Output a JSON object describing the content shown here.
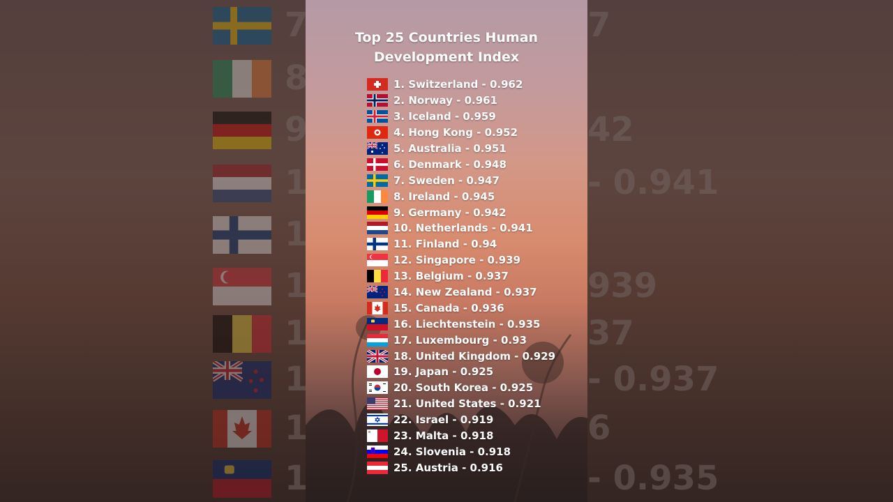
{
  "title_line1": "Top 25 Countries Human",
  "title_line2": "Development Index",
  "rows": [
    {
      "text": "1. Switzerland - 0.962",
      "flag": "switzerland-flag-icon"
    },
    {
      "text": "2. Norway - 0.961",
      "flag": "norway-flag-icon"
    },
    {
      "text": "3. Iceland - 0.959",
      "flag": "iceland-flag-icon"
    },
    {
      "text": "4. Hong Kong - 0.952",
      "flag": "hong-kong-flag-icon"
    },
    {
      "text": "5. Australia - 0.951",
      "flag": "australia-flag-icon"
    },
    {
      "text": "6. Denmark - 0.948",
      "flag": "denmark-flag-icon"
    },
    {
      "text": "7. Sweden - 0.947",
      "flag": "sweden-flag-icon"
    },
    {
      "text": "8. Ireland - 0.945",
      "flag": "ireland-flag-icon"
    },
    {
      "text": "9. Germany - 0.942",
      "flag": "germany-flag-icon"
    },
    {
      "text": "10. Netherlands - 0.941",
      "flag": "netherlands-flag-icon"
    },
    {
      "text": "11. Finland - 0.94",
      "flag": "finland-flag-icon"
    },
    {
      "text": "12. Singapore - 0.939",
      "flag": "singapore-flag-icon"
    },
    {
      "text": "13. Belgium - 0.937",
      "flag": "belgium-flag-icon"
    },
    {
      "text": "14. New Zealand - 0.937",
      "flag": "new-zealand-flag-icon"
    },
    {
      "text": "15. Canada - 0.936",
      "flag": "canada-flag-icon"
    },
    {
      "text": "16. Liechtenstein - 0.935",
      "flag": "liechtenstein-flag-icon"
    },
    {
      "text": "17. Luxembourg - 0.93",
      "flag": "luxembourg-flag-icon"
    },
    {
      "text": "18. United Kingdom - 0.929",
      "flag": "united-kingdom-flag-icon"
    },
    {
      "text": "19. Japan - 0.925",
      "flag": "japan-flag-icon"
    },
    {
      "text": "20. South Korea - 0.925",
      "flag": "south-korea-flag-icon"
    },
    {
      "text": "21. United States - 0.921",
      "flag": "united-states-flag-icon"
    },
    {
      "text": "22. Israel - 0.919",
      "flag": "israel-flag-icon"
    },
    {
      "text": "23. Malta - 0.918",
      "flag": "malta-flag-icon"
    },
    {
      "text": "24. Slovenia - 0.918",
      "flag": "slovenia-flag-icon"
    },
    {
      "text": "25. Austria - 0.916",
      "flag": "austria-flag-icon"
    }
  ],
  "background": {
    "left_fragments": [
      "7",
      "8",
      "9",
      "1",
      "1",
      "1",
      "1",
      "1",
      "1",
      "1"
    ],
    "right_fragments": [
      "7",
      "",
      "42",
      "- 0.941",
      "",
      "939",
      "37",
      "- 0.937",
      "6",
      "- 0.935"
    ]
  }
}
